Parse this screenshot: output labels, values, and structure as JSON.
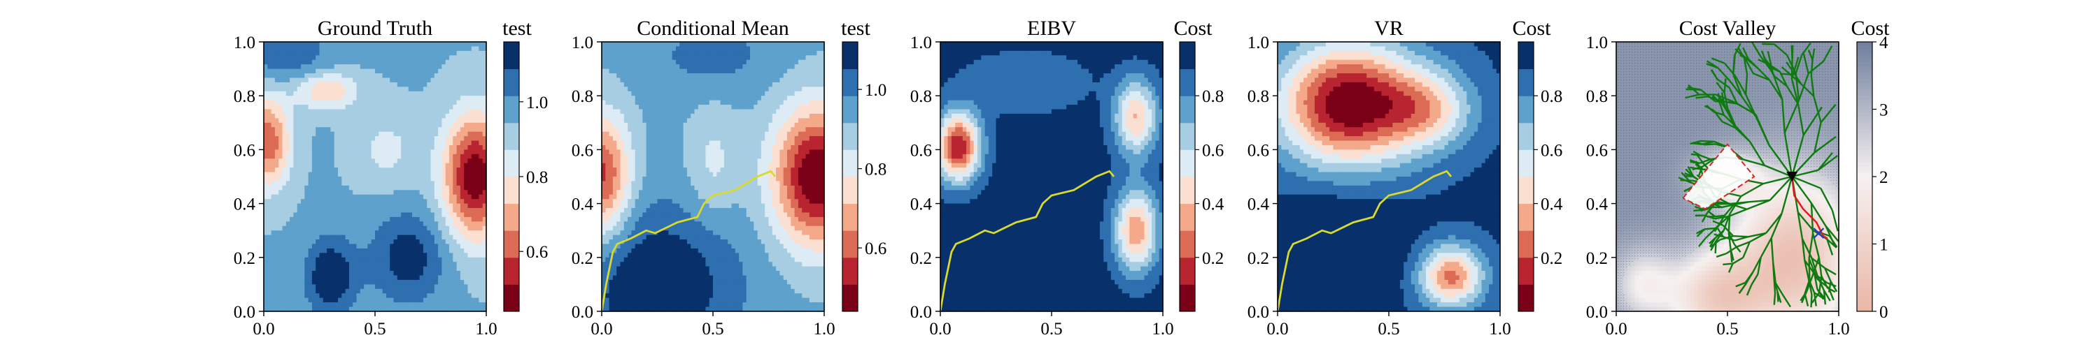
{
  "chart_data": [
    {
      "type": "heatmap",
      "title": "Ground Truth",
      "colorbar_label": "test",
      "colormap": "RdBu (discrete)",
      "xlim": [
        0.0,
        1.0
      ],
      "ylim": [
        0.0,
        1.0
      ],
      "xticks": [
        "0.0",
        "0.5",
        "1.0"
      ],
      "yticks": [
        "0.0",
        "0.2",
        "0.4",
        "0.6",
        "0.8",
        "1.0"
      ],
      "colorbar_range": [
        0.44,
        1.16
      ],
      "colorbar_ticks": [
        "0.6",
        "0.8",
        "1.0"
      ],
      "colorbar_tick_values": [
        0.6,
        0.8,
        1.0
      ],
      "field": {
        "base": 0.95,
        "blobs": [
          {
            "x": 0.95,
            "y": 0.5,
            "amp": -0.5,
            "sx": 0.1,
            "sy": 0.16
          },
          {
            "x": 0.02,
            "y": 0.63,
            "amp": -0.35,
            "sx": 0.07,
            "sy": 0.12
          },
          {
            "x": 0.28,
            "y": 0.82,
            "amp": -0.22,
            "sx": 0.1,
            "sy": 0.05
          },
          {
            "x": 0.3,
            "y": 0.13,
            "amp": 0.22,
            "sx": 0.08,
            "sy": 0.1
          },
          {
            "x": 0.65,
            "y": 0.2,
            "amp": 0.18,
            "sx": 0.12,
            "sy": 0.12
          },
          {
            "x": 0.1,
            "y": 0.95,
            "amp": 0.12,
            "sx": 0.15,
            "sy": 0.08
          },
          {
            "x": 0.55,
            "y": 0.6,
            "amp": -0.1,
            "sx": 0.1,
            "sy": 0.1
          }
        ]
      }
    },
    {
      "type": "heatmap",
      "title": "Conditional Mean",
      "colorbar_label": "test",
      "colormap": "RdBu (discrete)",
      "xlim": [
        0.0,
        1.0
      ],
      "ylim": [
        0.0,
        1.0
      ],
      "xticks": [
        "0.0",
        "0.5",
        "1.0"
      ],
      "yticks": [
        "0.0",
        "0.2",
        "0.4",
        "0.6",
        "0.8",
        "1.0"
      ],
      "colorbar_range": [
        0.44,
        1.12
      ],
      "colorbar_ticks": [
        "0.6",
        "0.8",
        "1.0"
      ],
      "colorbar_tick_values": [
        0.6,
        0.8,
        1.0
      ],
      "field": {
        "base": 0.93,
        "blobs": [
          {
            "x": 0.97,
            "y": 0.5,
            "amp": -0.5,
            "sx": 0.14,
            "sy": 0.18
          },
          {
            "x": 0.0,
            "y": 0.5,
            "amp": -0.38,
            "sx": 0.09,
            "sy": 0.16
          },
          {
            "x": 0.25,
            "y": 0.1,
            "amp": 0.2,
            "sx": 0.25,
            "sy": 0.2
          },
          {
            "x": 0.5,
            "y": 0.95,
            "amp": 0.08,
            "sx": 0.2,
            "sy": 0.1
          },
          {
            "x": 0.5,
            "y": 0.55,
            "amp": -0.1,
            "sx": 0.08,
            "sy": 0.15
          }
        ]
      },
      "path": {
        "x": [
          0.0,
          0.02,
          0.05,
          0.07,
          0.13,
          0.2,
          0.24,
          0.34,
          0.43,
          0.46,
          0.5,
          0.6,
          0.7,
          0.76,
          0.78
        ],
        "y": [
          0.0,
          0.1,
          0.22,
          0.25,
          0.27,
          0.3,
          0.29,
          0.33,
          0.35,
          0.4,
          0.43,
          0.45,
          0.5,
          0.52,
          0.5
        ]
      },
      "path_color": "#d9d92e"
    },
    {
      "type": "heatmap",
      "title": "EIBV",
      "colorbar_label": "Cost",
      "colormap": "RdBu (discrete)",
      "xlim": [
        0.0,
        1.0
      ],
      "ylim": [
        0.0,
        1.0
      ],
      "xticks": [
        "0.0",
        "0.5",
        "1.0"
      ],
      "yticks": [
        "0.0",
        "0.2",
        "0.4",
        "0.6",
        "0.8",
        "1.0"
      ],
      "colorbar_range": [
        0.0,
        1.0
      ],
      "colorbar_ticks": [
        "0.2",
        "0.4",
        "0.6",
        "0.8"
      ],
      "colorbar_tick_values": [
        0.2,
        0.4,
        0.6,
        0.8
      ],
      "field": {
        "base": 0.95,
        "blobs": [
          {
            "x": 0.08,
            "y": 0.61,
            "amp": -0.85,
            "sx": 0.07,
            "sy": 0.09
          },
          {
            "x": 0.88,
            "y": 0.72,
            "amp": -0.55,
            "sx": 0.07,
            "sy": 0.1
          },
          {
            "x": 0.88,
            "y": 0.3,
            "amp": -0.62,
            "sx": 0.07,
            "sy": 0.11
          },
          {
            "x": 0.38,
            "y": 0.85,
            "amp": -0.15,
            "sx": 0.2,
            "sy": 0.08
          }
        ]
      },
      "path": {
        "x": [
          0.0,
          0.02,
          0.05,
          0.07,
          0.13,
          0.2,
          0.24,
          0.34,
          0.43,
          0.46,
          0.5,
          0.6,
          0.7,
          0.76,
          0.78
        ],
        "y": [
          0.0,
          0.1,
          0.22,
          0.25,
          0.27,
          0.3,
          0.29,
          0.33,
          0.35,
          0.4,
          0.43,
          0.45,
          0.5,
          0.52,
          0.5
        ]
      },
      "path_color": "#d9d92e"
    },
    {
      "type": "heatmap",
      "title": "VR",
      "colorbar_label": "Cost",
      "colormap": "RdBu (discrete)",
      "xlim": [
        0.0,
        1.0
      ],
      "ylim": [
        0.0,
        1.0
      ],
      "xticks": [
        "0.0",
        "0.5",
        "1.0"
      ],
      "yticks": [
        "0.0",
        "0.2",
        "0.4",
        "0.6",
        "0.8",
        "1.0"
      ],
      "colorbar_range": [
        0.0,
        1.0
      ],
      "colorbar_ticks": [
        "0.2",
        "0.4",
        "0.6",
        "0.8"
      ],
      "colorbar_tick_values": [
        0.2,
        0.4,
        0.6,
        0.8
      ],
      "field": {
        "base": 0.92,
        "blobs": [
          {
            "x": 0.32,
            "y": 0.77,
            "amp": -0.92,
            "sx": 0.22,
            "sy": 0.16
          },
          {
            "x": 0.68,
            "y": 0.75,
            "amp": -0.4,
            "sx": 0.14,
            "sy": 0.1
          },
          {
            "x": 0.78,
            "y": 0.13,
            "amp": -0.65,
            "sx": 0.1,
            "sy": 0.08
          },
          {
            "x": 0.3,
            "y": 0.25,
            "amp": 0.15,
            "sx": 0.18,
            "sy": 0.14
          }
        ]
      },
      "path": {
        "x": [
          0.0,
          0.02,
          0.05,
          0.07,
          0.13,
          0.2,
          0.24,
          0.34,
          0.43,
          0.46,
          0.5,
          0.6,
          0.7,
          0.76,
          0.78
        ],
        "y": [
          0.0,
          0.1,
          0.22,
          0.25,
          0.27,
          0.3,
          0.29,
          0.33,
          0.35,
          0.4,
          0.43,
          0.45,
          0.5,
          0.52,
          0.5
        ]
      },
      "path_color": "#d9d92e"
    },
    {
      "type": "heatmap",
      "title": "Cost Valley",
      "colorbar_label": "Cost",
      "colormap": "Reds-to-Blues (continuous)",
      "xlim": [
        0.0,
        1.0
      ],
      "ylim": [
        0.0,
        1.0
      ],
      "xticks": [
        "0.0",
        "0.5",
        "1.0"
      ],
      "yticks": [
        "0.0",
        "0.2",
        "0.4",
        "0.6",
        "0.8",
        "1.0"
      ],
      "colorbar_range": [
        0,
        4
      ],
      "colorbar_ticks": [
        "0",
        "1",
        "2",
        "3",
        "4"
      ],
      "colorbar_tick_values": [
        0,
        1,
        2,
        3,
        4
      ],
      "field": {
        "base": 3.6,
        "blobs": [
          {
            "x": 0.8,
            "y": 0.2,
            "amp": -3.2,
            "sx": 0.2,
            "sy": 0.22
          },
          {
            "x": 0.45,
            "y": 0.05,
            "amp": -2.5,
            "sx": 0.15,
            "sy": 0.12
          },
          {
            "x": 0.12,
            "y": 0.1,
            "amp": -1.5,
            "sx": 0.1,
            "sy": 0.1
          },
          {
            "x": 0.5,
            "y": 0.5,
            "amp": -2.0,
            "sx": 0.1,
            "sy": 0.06
          }
        ]
      },
      "polygon": {
        "x": [
          0.3,
          0.5,
          0.62,
          0.4,
          0.3
        ],
        "y": [
          0.42,
          0.62,
          0.5,
          0.38,
          0.42
        ],
        "color": "#d62728"
      },
      "marker": {
        "x": 0.79,
        "y": 0.5,
        "symbol": "triangle-down",
        "color": "#000000"
      },
      "target": {
        "x": 0.91,
        "y": 0.29,
        "symbol": "x",
        "color": "#1f3fbf"
      },
      "red_path": {
        "x": [
          0.79,
          0.8,
          0.84,
          0.9,
          0.93,
          0.95
        ],
        "y": [
          0.5,
          0.43,
          0.38,
          0.33,
          0.28,
          0.27
        ],
        "color": "#e31a1c"
      },
      "tree_color": "#0f7a10"
    }
  ]
}
